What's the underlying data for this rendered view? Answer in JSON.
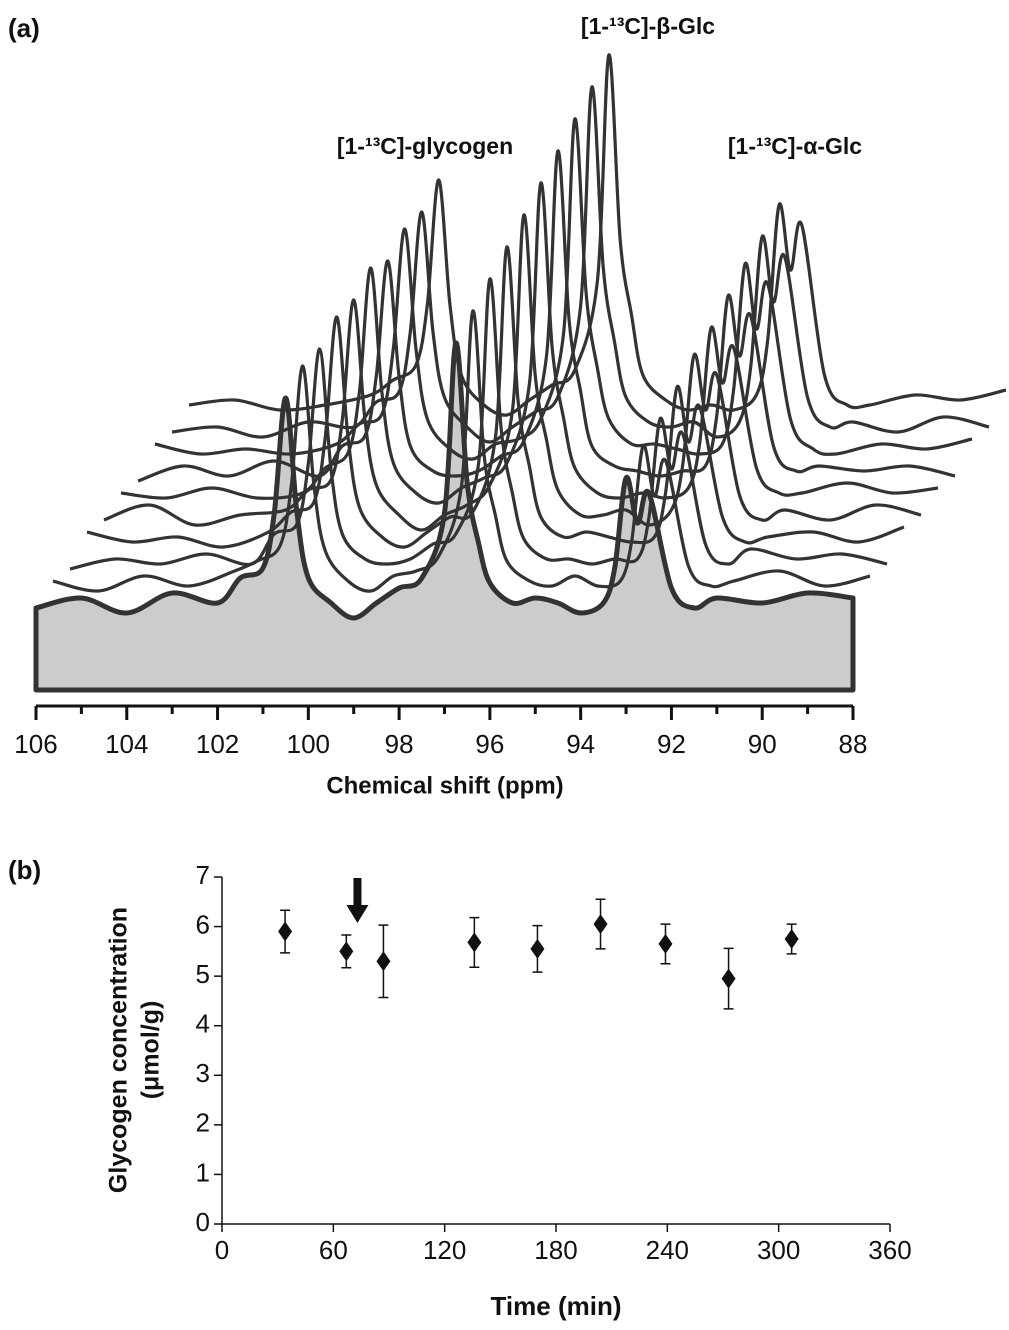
{
  "chart_data": [
    {
      "type": "waterfall",
      "panel_label": "(a)",
      "annotations": [
        "[1-¹³C]-glycogen",
        "[1-¹³C]-β-Glc",
        "[1-¹³C]-α-Glc"
      ],
      "xlabel": "Chemical shift (ppm)",
      "xlim": [
        106,
        88
      ],
      "xticks": [
        106,
        104,
        102,
        100,
        98,
        96,
        94,
        92,
        90,
        88
      ],
      "xminorticks": [
        105,
        103,
        101,
        99,
        97,
        95,
        93,
        91,
        89
      ],
      "x": [
        106,
        105,
        104,
        103,
        102,
        101.5,
        101,
        100.75,
        100.5,
        100.25,
        100,
        99.5,
        99,
        98.5,
        98,
        97.5,
        97,
        96.75,
        96.5,
        96.25,
        96,
        95.5,
        95,
        94.5,
        94,
        93.5,
        93.25,
        93,
        92.75,
        92.5,
        92,
        91.5,
        91,
        90,
        89,
        88
      ],
      "color": "#333333",
      "fill": "#cccccc",
      "series": [
        {
          "values": [
            4,
            6,
            3,
            7,
            5,
            10,
            12,
            23,
            46,
            23,
            10,
            5,
            2,
            5,
            8,
            10,
            23,
            57,
            29,
            17,
            9,
            5,
            6,
            5,
            3,
            5,
            12,
            30,
            21,
            27,
            8,
            4,
            6,
            5,
            7,
            6
          ]
        },
        {
          "values": [
            5,
            3,
            6,
            4,
            7,
            9,
            12,
            24,
            48,
            24,
            11,
            5,
            3,
            6,
            7,
            10,
            24,
            59,
            30,
            18,
            9,
            5,
            4,
            6,
            4,
            5,
            13,
            32,
            22,
            29,
            8,
            4,
            5,
            7,
            4,
            6
          ]
        },
        {
          "values": [
            3,
            5,
            4,
            6,
            4,
            10,
            12,
            24,
            47,
            23,
            10,
            5,
            4,
            5,
            8,
            10,
            24,
            61,
            31,
            18,
            9,
            5,
            5,
            4,
            5,
            5,
            13,
            33,
            23,
            30,
            8,
            4,
            7,
            5,
            6,
            4
          ]
        },
        {
          "values": [
            6,
            4,
            5,
            3,
            6,
            10,
            12,
            25,
            49,
            25,
            11,
            5,
            3,
            6,
            9,
            10,
            25,
            63,
            32,
            19,
            9,
            5,
            6,
            5,
            4,
            5,
            14,
            35,
            24,
            31,
            9,
            4,
            5,
            6,
            4,
            7
          ]
        },
        {
          "values": [
            4,
            7,
            3,
            5,
            6,
            10,
            12,
            24,
            48,
            24,
            11,
            5,
            2,
            5,
            7,
            11,
            26,
            65,
            33,
            20,
            10,
            5,
            5,
            6,
            3,
            6,
            15,
            37,
            26,
            33,
            9,
            4,
            6,
            4,
            7,
            5
          ]
        },
        {
          "values": [
            5,
            4,
            6,
            4,
            5,
            10,
            13,
            25,
            50,
            25,
            11,
            5,
            3,
            6,
            8,
            11,
            27,
            67,
            34,
            20,
            10,
            5,
            4,
            5,
            4,
            6,
            15,
            38,
            27,
            34,
            10,
            5,
            5,
            7,
            5,
            6
          ]
        },
        {
          "values": [
            3,
            6,
            4,
            7,
            4,
            10,
            12,
            24,
            47,
            24,
            10,
            5,
            4,
            5,
            8,
            11,
            28,
            69,
            35,
            21,
            10,
            6,
            5,
            4,
            5,
            6,
            16,
            40,
            28,
            36,
            10,
            5,
            6,
            5,
            6,
            4
          ]
        },
        {
          "values": [
            6,
            4,
            5,
            4,
            6,
            10,
            12,
            25,
            49,
            25,
            11,
            5,
            3,
            6,
            7,
            11,
            28,
            71,
            36,
            21,
            11,
            6,
            6,
            5,
            4,
            6,
            17,
            42,
            29,
            38,
            11,
            5,
            4,
            6,
            5,
            7
          ]
        },
        {
          "values": [
            4,
            5,
            3,
            6,
            5,
            10,
            12,
            24,
            48,
            24,
            11,
            5,
            2,
            5,
            8,
            11,
            29,
            73,
            37,
            22,
            11,
            6,
            5,
            6,
            3,
            6,
            17,
            43,
            30,
            39,
            11,
            5,
            6,
            4,
            7,
            5
          ]
        },
        {
          "values": [
            5,
            6,
            4,
            5,
            7,
            10,
            13,
            25,
            50,
            25,
            11,
            5,
            3,
            6,
            9,
            12,
            30,
            75,
            38,
            23,
            11,
            6,
            4,
            5,
            4,
            7,
            18,
            45,
            32,
            41,
            11,
            5,
            5,
            7,
            6,
            8
          ]
        }
      ]
    },
    {
      "type": "scatter",
      "panel_label": "(b)",
      "xlabel": "Time (min)",
      "ylabel": [
        "Glycogen concentration",
        "(μmol/g)"
      ],
      "xlim": [
        0,
        360
      ],
      "xticks": [
        0,
        60,
        120,
        180,
        240,
        300,
        360
      ],
      "ylim": [
        0,
        7
      ],
      "yticks": [
        0,
        1,
        2,
        3,
        4,
        5,
        6,
        7
      ],
      "arrow": {
        "x": 73
      },
      "series": [
        {
          "color": "#111111",
          "marker": "diamond",
          "x": [
            34,
            67,
            87,
            136,
            170,
            204,
            239,
            273,
            307
          ],
          "values": [
            5.9,
            5.5,
            5.3,
            5.68,
            5.55,
            6.05,
            5.65,
            4.95,
            5.75
          ],
          "errors": [
            0.43,
            0.33,
            0.73,
            0.5,
            0.47,
            0.5,
            0.4,
            0.61,
            0.3
          ]
        }
      ]
    }
  ]
}
